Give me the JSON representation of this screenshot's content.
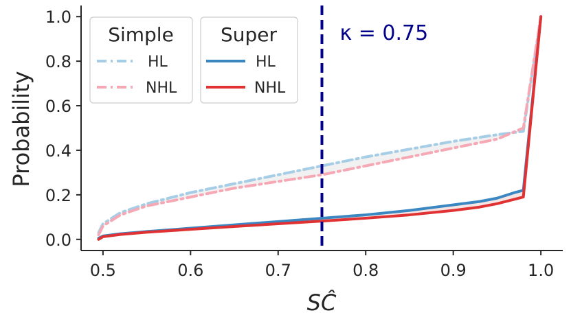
{
  "chart_data": {
    "type": "line",
    "xlabel": "SĈ",
    "ylabel": "Probability",
    "xlim": [
      0.475,
      1.025
    ],
    "ylim": [
      -0.05,
      1.05
    ],
    "xticks": [
      "0.5",
      "0.6",
      "0.7",
      "0.8",
      "0.9",
      "1.0"
    ],
    "yticks": [
      "0.0",
      "0.2",
      "0.4",
      "0.6",
      "0.8",
      "1.0"
    ],
    "grid": false,
    "threshold": {
      "x": 0.75,
      "label": "κ = 0.75",
      "color": "#00008b"
    },
    "legend_groups": [
      {
        "title": "Simple",
        "entries": [
          "HL",
          "NHL"
        ]
      },
      {
        "title": "Super",
        "entries": [
          "HL",
          "NHL"
        ]
      }
    ],
    "legend_placement": "top-left",
    "series": [
      {
        "name": "HL",
        "group": "Simple",
        "style": "dashdot",
        "color": "#a6cde6",
        "x": [
          0.495,
          0.5,
          0.52,
          0.55,
          0.6,
          0.65,
          0.7,
          0.75,
          0.8,
          0.85,
          0.9,
          0.95,
          0.98,
          1.0
        ],
        "y": [
          0.03,
          0.07,
          0.12,
          0.16,
          0.21,
          0.25,
          0.29,
          0.33,
          0.37,
          0.405,
          0.44,
          0.47,
          0.485,
          1.0
        ]
      },
      {
        "name": "NHL",
        "group": "Simple",
        "style": "dashdot",
        "color": "#f6a8b4",
        "x": [
          0.495,
          0.5,
          0.52,
          0.55,
          0.6,
          0.65,
          0.7,
          0.75,
          0.8,
          0.85,
          0.9,
          0.95,
          0.98,
          1.0
        ],
        "y": [
          0.02,
          0.06,
          0.11,
          0.15,
          0.19,
          0.23,
          0.26,
          0.29,
          0.33,
          0.37,
          0.41,
          0.45,
          0.5,
          1.0
        ]
      },
      {
        "name": "HL",
        "group": "Super",
        "style": "solid",
        "color": "#3a87c2",
        "x": [
          0.495,
          0.5,
          0.52,
          0.55,
          0.6,
          0.65,
          0.7,
          0.75,
          0.8,
          0.85,
          0.9,
          0.93,
          0.95,
          0.97,
          0.98,
          1.0
        ],
        "y": [
          0.005,
          0.015,
          0.025,
          0.035,
          0.05,
          0.065,
          0.08,
          0.095,
          0.11,
          0.13,
          0.155,
          0.17,
          0.185,
          0.21,
          0.22,
          1.0
        ]
      },
      {
        "name": "NHL",
        "group": "Super",
        "style": "solid",
        "color": "#e03232",
        "x": [
          0.495,
          0.5,
          0.52,
          0.55,
          0.6,
          0.65,
          0.7,
          0.75,
          0.8,
          0.85,
          0.9,
          0.93,
          0.95,
          0.97,
          0.98,
          1.0
        ],
        "y": [
          0.0,
          0.012,
          0.022,
          0.032,
          0.045,
          0.058,
          0.07,
          0.082,
          0.095,
          0.11,
          0.13,
          0.145,
          0.16,
          0.18,
          0.19,
          1.0
        ]
      }
    ]
  }
}
